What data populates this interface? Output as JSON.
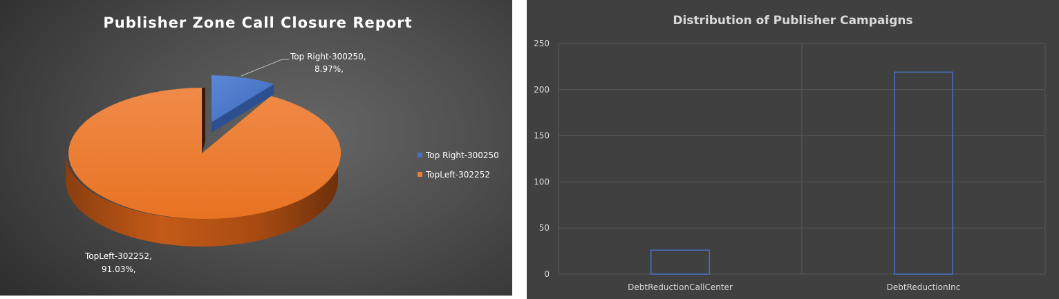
{
  "chart_data": [
    {
      "type": "pie",
      "title": "Publisher Zone Call Closure Report",
      "slices": [
        {
          "name": "Top Right-300250",
          "value": 8.97,
          "color": "#4472c4"
        },
        {
          "name": "TopLeft-302252",
          "value": 91.03,
          "color": "#ed7d31"
        }
      ],
      "data_labels": [
        {
          "line1": "Top Right-300250,",
          "line2": "8.97%,"
        },
        {
          "line1": "TopLeft-302252,",
          "line2": "91.03%,"
        }
      ],
      "legend": [
        "Top Right-300250",
        "TopLeft-302252"
      ],
      "legend_position": "right",
      "style": "3d-exploded"
    },
    {
      "type": "bar",
      "title": "Distribution of Publisher Campaigns",
      "categories": [
        "DebtReductionCallCenter",
        "DebtReductionInc"
      ],
      "values": [
        26,
        219
      ],
      "ylim": [
        0,
        250
      ],
      "yticks": [
        "0",
        "50",
        "100",
        "150",
        "200",
        "250"
      ],
      "grid": true,
      "bar_color": "#4472c4",
      "bar_fill": "none"
    }
  ]
}
